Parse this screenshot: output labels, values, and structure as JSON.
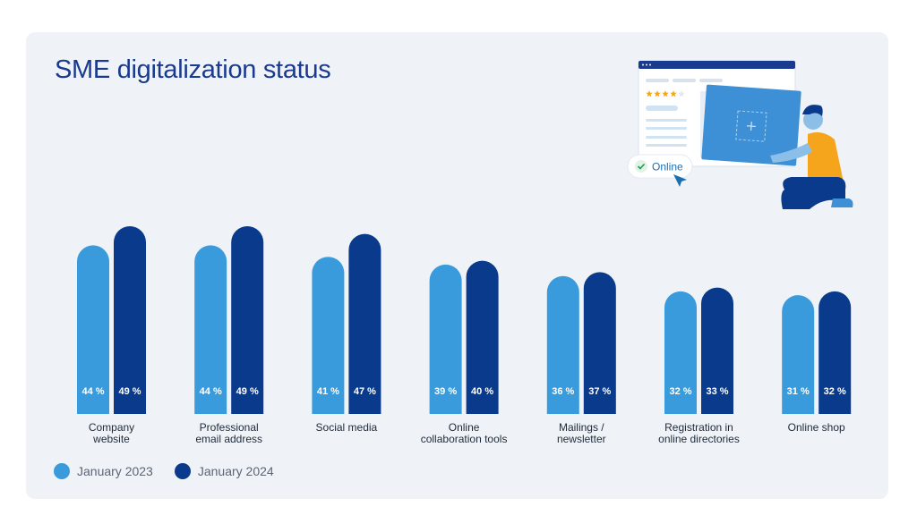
{
  "title": "SME digitalization status",
  "colors": {
    "series_2023": "#3a9bdc",
    "series_2024": "#0a3a8c",
    "card_bg": "#eff3f7",
    "title": "#1a3a8f"
  },
  "illustration": {
    "badge_label": "Online",
    "check_icon": "check-icon",
    "cursor_icon": "cursor-arrow-icon",
    "rating_stars": 4,
    "rating_max": 5
  },
  "chart_data": {
    "type": "bar",
    "title": "SME digitalization status",
    "categories": [
      "Company\nwebsite",
      "Professional\nemail address",
      "Social media",
      "Online\ncollaboration tools",
      "Mailings /\nnewsletter",
      "Registration in\nonline directories",
      "Online shop"
    ],
    "series": [
      {
        "name": "January 2023",
        "values": [
          44,
          44,
          41,
          39,
          36,
          32,
          31
        ],
        "labels": [
          "44 %",
          "44 %",
          "41 %",
          "39 %",
          "36 %",
          "32 %",
          "31 %"
        ]
      },
      {
        "name": "January 2024",
        "values": [
          49,
          49,
          47,
          40,
          37,
          33,
          32
        ],
        "labels": [
          "49 %",
          "49 %",
          "47 %",
          "40 %",
          "37 %",
          "33 %",
          "32 %"
        ]
      }
    ],
    "ylim": [
      0,
      55
    ],
    "grid": false,
    "legend": "bottom-left",
    "xlabel": "",
    "ylabel": ""
  }
}
